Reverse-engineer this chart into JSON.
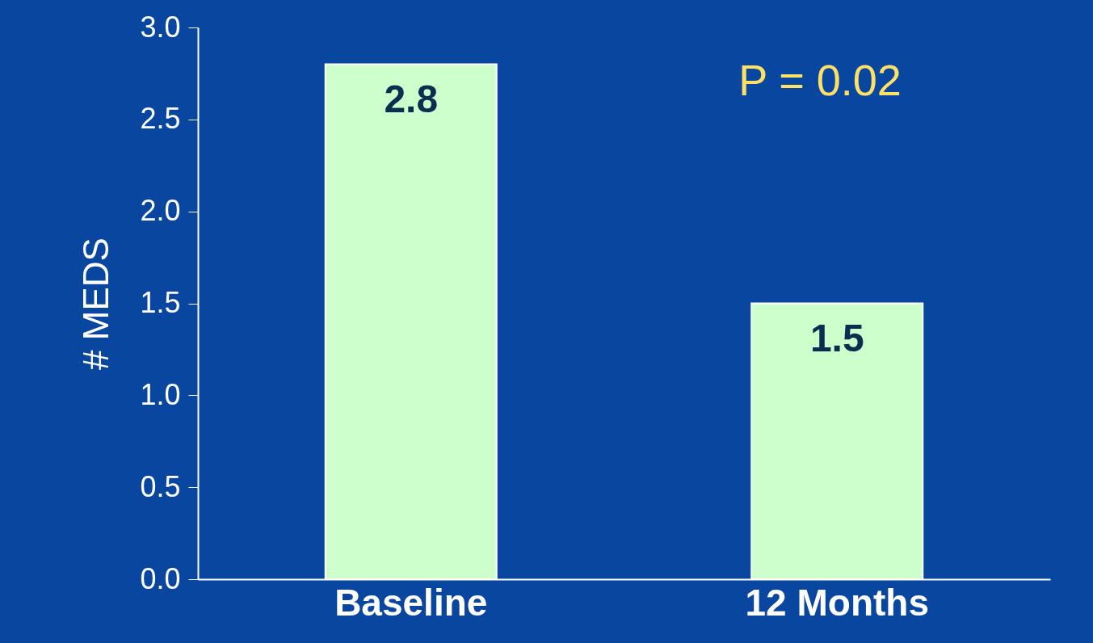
{
  "chart_data": {
    "type": "bar",
    "ylabel": "# MEDS",
    "categories": [
      "Baseline",
      "12 Months"
    ],
    "values": [
      2.8,
      1.5
    ],
    "color": "#ccffcc",
    "data_labels": true,
    "ylim": [
      0,
      3
    ],
    "yticks": [
      {
        "value": 0,
        "label": "0.0"
      },
      0.5,
      {
        "value": 1,
        "label": "1.0"
      },
      1.5,
      {
        "value": 2,
        "label": "2.0"
      },
      2.5,
      {
        "value": 3,
        "label": "3.0"
      }
    ],
    "grid": false,
    "annotations": [
      "P = 0.02"
    ]
  }
}
